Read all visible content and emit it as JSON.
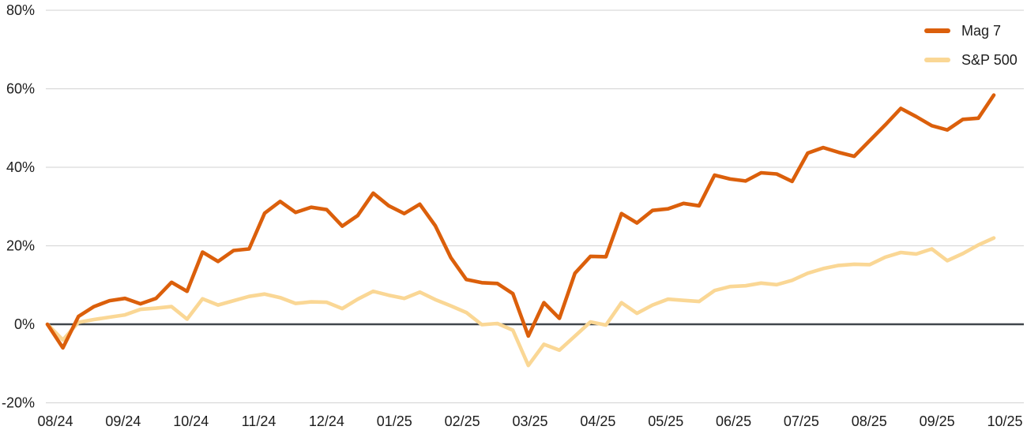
{
  "chart_data": {
    "type": "line",
    "title": "",
    "xlabel": "",
    "ylabel": "",
    "grid": "horizontal",
    "legend_position": "top-right",
    "x_tick_labels": [
      "08/24",
      "09/24",
      "10/24",
      "11/24",
      "12/24",
      "01/25",
      "02/25",
      "03/25",
      "04/25",
      "05/25",
      "06/25",
      "07/25",
      "08/25",
      "09/25",
      "10/25"
    ],
    "y_ticks": [
      {
        "value": 80,
        "label": "80%"
      },
      {
        "value": 60,
        "label": "60%"
      },
      {
        "value": 40,
        "label": "40%"
      },
      {
        "value": 20,
        "label": "20%"
      },
      {
        "value": 0,
        "label": "0%"
      },
      {
        "value": -20,
        "label": "-20%"
      }
    ],
    "y_axis": {
      "min": -20,
      "max": 80,
      "unit": "%",
      "zero_baseline_emphasized": true
    },
    "x_axis": {
      "note": "weekly data points from 08/24 through 10/25"
    },
    "series": [
      {
        "name": "Mag 7",
        "color": "#DB5F0B",
        "values": [
          0,
          -6,
          2,
          4.5,
          6,
          6.6,
          5.2,
          6.6,
          10.7,
          8.4,
          18.4,
          16,
          18.8,
          19.2,
          28.3,
          31.3,
          28.5,
          29.8,
          29.2,
          25,
          27.7,
          33.4,
          30.2,
          28.2,
          30.6,
          25.1,
          17,
          11.4,
          10.6,
          10.4,
          7.8,
          -3,
          5.5,
          1.5,
          13,
          17.3,
          17.2,
          28.2,
          25.8,
          29,
          29.4,
          30.8,
          30.2,
          38,
          37,
          36.5,
          38.6,
          38.3,
          36.4,
          43.6,
          45,
          43.8,
          42.8,
          46.8,
          50.8,
          55,
          52.9,
          50.6,
          49.5,
          52.2,
          52.5,
          58.4
        ]
      },
      {
        "name": "S&P 500",
        "color": "#FAD795",
        "values": [
          0,
          -4,
          0.5,
          1.2,
          1.8,
          2.4,
          3.8,
          4.1,
          4.5,
          1.3,
          6.5,
          4.9,
          6,
          7.1,
          7.7,
          6.8,
          5.3,
          5.7,
          5.6,
          4,
          6.4,
          8.4,
          7.4,
          6.6,
          8.2,
          6.3,
          4.7,
          3,
          -0.1,
          0.2,
          -1.5,
          -10.5,
          -5.1,
          -6.6,
          -3,
          0.6,
          -0.2,
          5.5,
          2.8,
          4.9,
          6.4,
          6.1,
          5.8,
          8.6,
          9.6,
          9.8,
          10.5,
          10.1,
          11.2,
          13,
          14.2,
          15,
          15.3,
          15.2,
          17.1,
          18.3,
          17.9,
          19.2,
          16.2,
          18,
          20.2,
          22
        ]
      }
    ],
    "colors": {
      "gridline": "#D9D9D9",
      "zero_line": "#40464B",
      "tick_text": "#1D1D1D",
      "background": "#FFFFFF"
    }
  }
}
